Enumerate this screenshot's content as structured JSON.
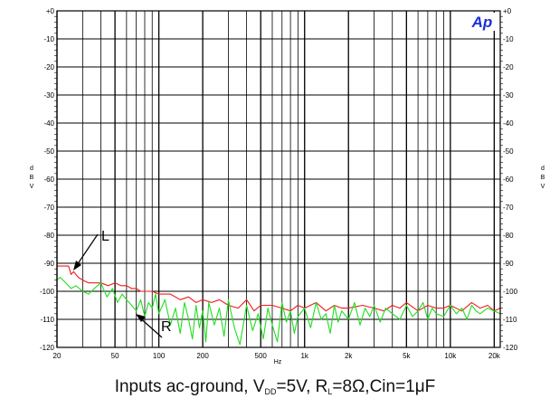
{
  "chart_data": {
    "type": "line",
    "title": "",
    "xlabel": "Hz",
    "ylabel": "d B V",
    "x_scale": "log",
    "xlim": [
      20,
      22000
    ],
    "ylim": [
      -120,
      0
    ],
    "grid": true,
    "x_ticks": [
      20,
      50,
      100,
      200,
      500,
      1000,
      2000,
      5000,
      10000,
      20000
    ],
    "x_tick_labels": [
      "20",
      "50",
      "100",
      "200",
      "500",
      "1k",
      "2k",
      "5k",
      "10k",
      "20k"
    ],
    "y_ticks": [
      0,
      -10,
      -20,
      -30,
      -40,
      -50,
      -60,
      -70,
      -80,
      -90,
      -100,
      -110,
      -120
    ],
    "y_tick_labels": [
      "+0",
      "-10",
      "-20",
      "-30",
      "-40",
      "-50",
      "-60",
      "-70",
      "-80",
      "-90",
      "-100",
      "-110",
      "-120"
    ],
    "series": [
      {
        "name": "L",
        "color": "#ee1c1c",
        "x": [
          20,
          22,
          24,
          25,
          26,
          28,
          30,
          33,
          36,
          40,
          45,
          50,
          55,
          60,
          65,
          70,
          75,
          80,
          90,
          100,
          110,
          120,
          140,
          160,
          180,
          200,
          230,
          260,
          300,
          350,
          400,
          450,
          500,
          600,
          700,
          800,
          900,
          1000,
          1200,
          1400,
          1600,
          1800,
          2000,
          2500,
          3000,
          3500,
          4000,
          4500,
          5000,
          6000,
          7000,
          8000,
          9000,
          10000,
          12000,
          14000,
          16000,
          18000,
          20000,
          22000
        ],
        "y": [
          -91,
          -91,
          -91,
          -94,
          -93,
          -95,
          -96,
          -97,
          -97,
          -97,
          -98,
          -97,
          -98,
          -98,
          -99,
          -99,
          -100,
          -100,
          -100,
          -101,
          -101,
          -101,
          -103,
          -102,
          -104,
          -103,
          -104,
          -103,
          -105,
          -106,
          -103,
          -107,
          -105,
          -105,
          -106,
          -107,
          -105,
          -106,
          -104,
          -107,
          -105,
          -106,
          -106,
          -105,
          -106,
          -107,
          -105,
          -106,
          -104,
          -107,
          -105,
          -106,
          -106,
          -105,
          -107,
          -104,
          -106,
          -105,
          -107,
          -106
        ]
      },
      {
        "name": "R",
        "color": "#22dd22",
        "x": [
          20,
          21,
          23,
          25,
          27,
          30,
          33,
          36,
          40,
          44,
          48,
          52,
          56,
          60,
          65,
          70,
          75,
          80,
          85,
          90,
          95,
          100,
          110,
          120,
          130,
          140,
          150,
          160,
          170,
          180,
          190,
          200,
          210,
          220,
          240,
          260,
          280,
          300,
          330,
          360,
          400,
          440,
          480,
          520,
          560,
          600,
          650,
          700,
          750,
          800,
          850,
          900,
          1000,
          1100,
          1200,
          1300,
          1400,
          1500,
          1600,
          1700,
          1800,
          2000,
          2200,
          2400,
          2600,
          2800,
          3000,
          3300,
          3600,
          4000,
          4500,
          5000,
          5500,
          6000,
          6500,
          7000,
          7500,
          8000,
          9000,
          10000,
          11000,
          12000,
          13000,
          14000,
          15000,
          16000,
          18000,
          20000,
          22000
        ],
        "y": [
          -96,
          -95,
          -97,
          -99,
          -98,
          -100,
          -101,
          -99,
          -97,
          -102,
          -99,
          -104,
          -101,
          -103,
          -105,
          -107,
          -103,
          -109,
          -104,
          -106,
          -101,
          -108,
          -103,
          -112,
          -106,
          -115,
          -104,
          -110,
          -117,
          -105,
          -113,
          -107,
          -118,
          -104,
          -112,
          -106,
          -116,
          -103,
          -113,
          -119,
          -105,
          -114,
          -108,
          -117,
          -106,
          -112,
          -118,
          -104,
          -111,
          -107,
          -115,
          -109,
          -106,
          -113,
          -104,
          -110,
          -108,
          -115,
          -105,
          -111,
          -107,
          -110,
          -104,
          -112,
          -106,
          -109,
          -105,
          -111,
          -106,
          -108,
          -110,
          -105,
          -109,
          -107,
          -104,
          -110,
          -106,
          -108,
          -109,
          -105,
          -108,
          -106,
          -110,
          -105,
          -107,
          -108,
          -106,
          -107,
          -108
        ]
      }
    ],
    "annotations": [
      "L",
      "R"
    ],
    "logo": "Ap",
    "caption_parts": {
      "prefix": "Inputs ac-ground, V",
      "vdd_sub": "DD",
      "vdd_val": "=5V, R",
      "rl_sub": "L",
      "rl_val": "=8Ω,Cin=1μF"
    }
  }
}
